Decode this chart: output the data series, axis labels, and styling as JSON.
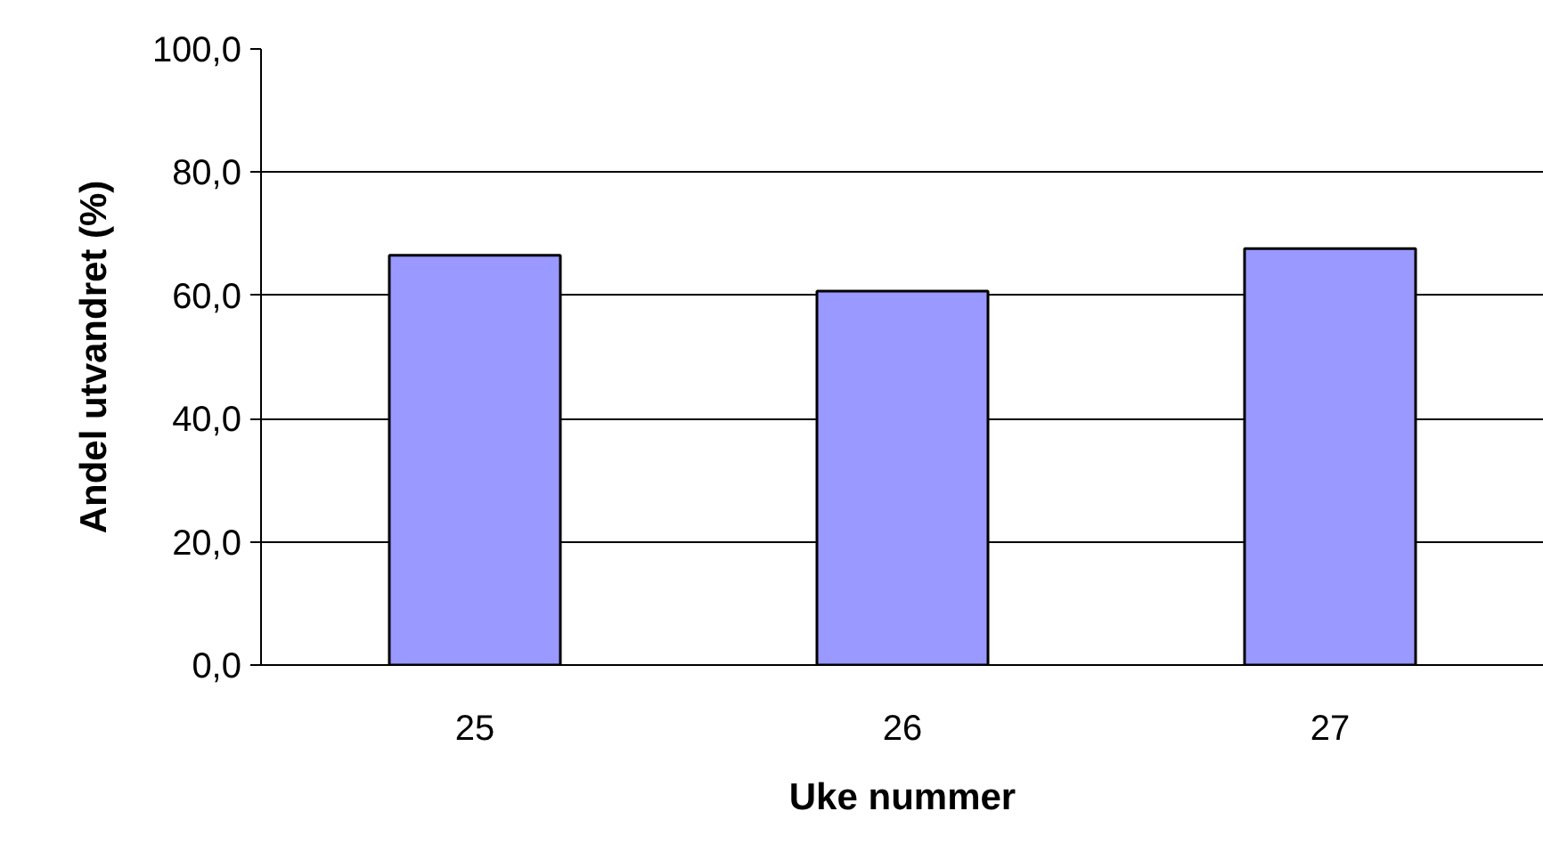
{
  "chart_data": {
    "type": "bar",
    "xlabel": "Uke nummer",
    "ylabel": "Andel utvandret (%)",
    "categories": [
      "25",
      "26",
      "27"
    ],
    "values": [
      66.5,
      60.7,
      67.6
    ],
    "color": "#9999ff",
    "ylim": [
      0,
      100
    ],
    "yticks": [
      {
        "value": 0,
        "label": "0,0"
      },
      {
        "value": 20,
        "label": "20,0"
      },
      {
        "value": 40,
        "label": "40,0"
      },
      {
        "value": 60,
        "label": "60,0"
      },
      {
        "value": 80,
        "label": "80,0"
      },
      {
        "value": 100,
        "label": "100,0"
      }
    ],
    "grid": "y"
  }
}
